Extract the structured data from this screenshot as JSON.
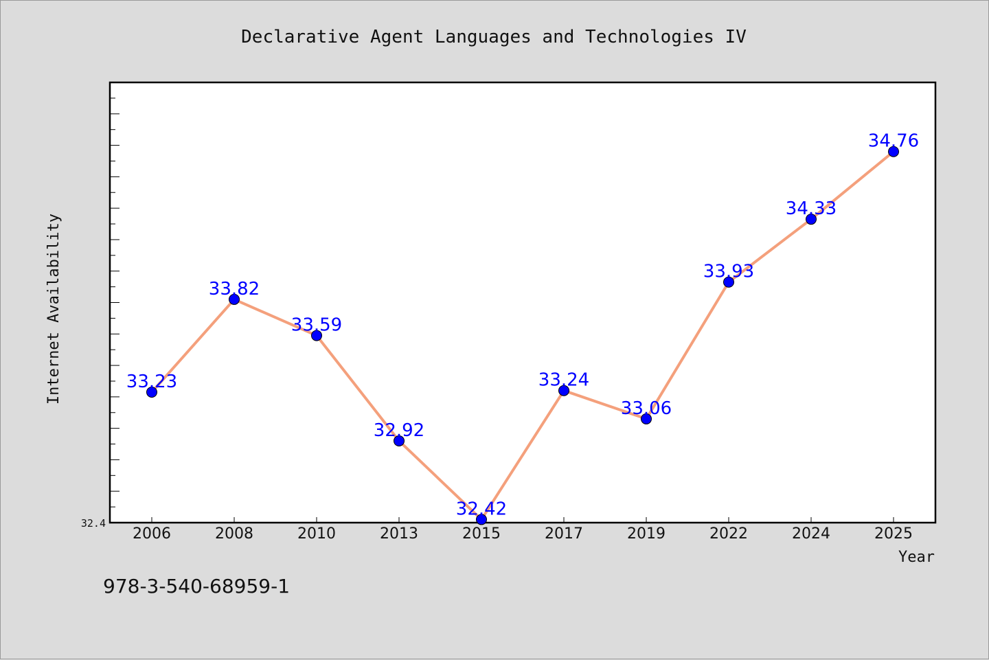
{
  "chart_data": {
    "type": "line",
    "title": "Declarative Agent Languages and Technologies IV",
    "xlabel": "Year",
    "ylabel": "Internet Availability",
    "categories": [
      "2006",
      "2008",
      "2010",
      "2013",
      "2015",
      "2017",
      "2019",
      "2022",
      "2024",
      "2025"
    ],
    "series": [
      {
        "values": [
          33.23,
          33.82,
          33.59,
          32.92,
          32.42,
          33.24,
          33.06,
          33.93,
          34.33,
          34.76
        ],
        "labels": [
          "33.23",
          "33.82",
          "33.59",
          "32.92",
          "32.42",
          "33.24",
          "33.06",
          "33.93",
          "34.33",
          "34.76"
        ]
      }
    ],
    "ylim": [
      32.4,
      35.2
    ],
    "yticks_labeled": [
      "32.4"
    ],
    "grid": false,
    "line_color": "#f4a07c",
    "marker_color": "#0000ff",
    "label_color": "#0000ff"
  },
  "footnote": "978-3-540-68959-1"
}
